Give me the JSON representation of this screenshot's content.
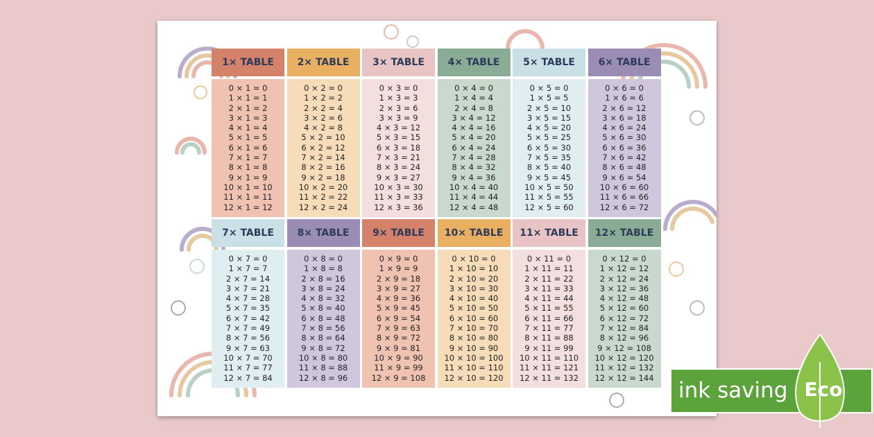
{
  "tables": [
    {
      "header": "1× TABLE",
      "rows": [
        "0 × 1 = 0",
        "1 × 1 = 1",
        "2 × 1 = 2",
        "3 × 1 = 3",
        "4 × 1 = 4",
        "5 × 1 = 5",
        "6 × 1 = 6",
        "7 × 1 = 7",
        "8 × 1 = 8",
        "9 × 1 = 9",
        "10 × 1 = 10",
        "11 × 1 = 11",
        "12 × 1 = 12"
      ]
    },
    {
      "header": "2× TABLE",
      "rows": [
        "0 × 2 = 0",
        "1 × 2 = 2",
        "2 × 2 = 4",
        "3 × 2 = 6",
        "4 × 2 = 8",
        "5 × 2 = 10",
        "6 × 2 = 12",
        "7 × 2 = 14",
        "8 × 2 = 16",
        "9 × 2 = 18",
        "10 × 2 = 20",
        "11 × 2 = 22",
        "12 × 2 = 24"
      ]
    },
    {
      "header": "3× TABLE",
      "rows": [
        "0 × 3 = 0",
        "1 × 3 = 3",
        "2 × 3 = 6",
        "3 × 3 = 9",
        "4 × 3 = 12",
        "5 × 3 = 15",
        "6 × 3 = 18",
        "7 × 3 = 21",
        "8 × 3 = 24",
        "9 × 3 = 27",
        "10 × 3 = 30",
        "11 × 3 = 33",
        "12 × 3 = 36"
      ]
    },
    {
      "header": "4× TABLE",
      "rows": [
        "0 × 4 = 0",
        "1 × 4 = 4",
        "2 × 4 = 8",
        "3 × 4 = 12",
        "4 × 4 = 16",
        "5 × 4 = 20",
        "6 × 4 = 24",
        "7 × 4 = 28",
        "8 × 4 = 32",
        "9 × 4 = 36",
        "10 × 4 = 40",
        "11 × 4 = 44",
        "12 × 4 = 48"
      ]
    },
    {
      "header": "5× TABLE",
      "rows": [
        "0 × 5 = 0",
        "1 × 5 = 5",
        "2 × 5 = 10",
        "3 × 5 = 15",
        "4 × 5 = 20",
        "5 × 5 = 25",
        "6 × 5 = 30",
        "7 × 5 = 35",
        "8 × 5 = 40",
        "9 × 5 = 45",
        "10 × 5 = 50",
        "11 × 5 = 55",
        "12 × 5 = 60"
      ]
    },
    {
      "header": "6× TABLE",
      "rows": [
        "0 × 6 = 0",
        "1 × 6 = 6",
        "2 × 6 = 12",
        "3 × 6 = 18",
        "4 × 6 = 24",
        "5 × 6 = 30",
        "6 × 6 = 36",
        "7 × 6 = 42",
        "8 × 6 = 48",
        "9 × 6 = 54",
        "10 × 6 = 60",
        "11 × 6 = 66",
        "12 × 6 = 72"
      ]
    },
    {
      "header": "7× TABLE",
      "rows": [
        "0 × 7 = 0",
        "1 × 7 = 7",
        "2 × 7 = 14",
        "3 × 7 = 21",
        "4 × 7 = 28",
        "5 × 7 = 35",
        "6 × 7 = 42",
        "7 × 7 = 49",
        "8 × 7 = 56",
        "9 × 7 = 63",
        "10 × 7 = 70",
        "11 × 7 = 77",
        "12 × 7 = 84"
      ]
    },
    {
      "header": "8× TABLE",
      "rows": [
        "0 × 8 = 0",
        "1 × 8 = 8",
        "2 × 8 = 16",
        "3 × 8 = 24",
        "4 × 8 = 32",
        "5 × 8 = 40",
        "6 × 8 = 48",
        "7 × 8 = 56",
        "8 × 8 = 64",
        "9 × 8 = 72",
        "10 × 8 = 80",
        "11 × 8 = 88",
        "12 × 8 = 96"
      ]
    },
    {
      "header": "9× TABLE",
      "rows": [
        "0 × 9 = 0",
        "1 × 9 = 9",
        "2 × 9 = 18",
        "3 × 9 = 27",
        "4 × 9 = 36",
        "5 × 9 = 45",
        "6 × 9 = 54",
        "7 × 9 = 63",
        "8 × 9 = 72",
        "9 × 9 = 81",
        "10 × 9 = 90",
        "11 × 9 = 99",
        "12 × 9 = 108"
      ]
    },
    {
      "header": "10× TABLE",
      "rows": [
        "0 × 10 = 0",
        "1 × 10 = 10",
        "2 × 10 = 20",
        "3 × 10 = 30",
        "4 × 10 = 40",
        "5 × 10 = 50",
        "6 × 10 = 60",
        "7 × 10 = 70",
        "8 × 10 = 80",
        "9 × 10 = 90",
        "10 × 10 = 100",
        "11 × 10 = 110",
        "12 × 10 = 120"
      ]
    },
    {
      "header": "11× TABLE",
      "rows": [
        "0 × 11 = 0",
        "1 × 11 = 11",
        "2 × 11 = 22",
        "3 × 11 = 33",
        "4 × 11 = 44",
        "5 × 11 = 55",
        "6 × 11 = 66",
        "7 × 11 = 77",
        "8 × 11 = 88",
        "9 × 11 = 99",
        "10 × 11 = 110",
        "11 × 11 = 121",
        "12 × 11 = 132"
      ]
    },
    {
      "header": "12× TABLE",
      "rows": [
        "0 × 12 = 0",
        "1 × 12 = 12",
        "2 × 12 = 24",
        "3 × 12 = 36",
        "4 × 12 = 48",
        "5 × 12 = 60",
        "6 × 12 = 72",
        "7 × 12 = 84",
        "8 × 12 = 96",
        "9 × 12 = 108",
        "10 × 12 = 120",
        "11 × 12 = 132",
        "12 × 12 = 144"
      ]
    }
  ],
  "badge": {
    "text": "ink saving",
    "eco": "Eco"
  }
}
